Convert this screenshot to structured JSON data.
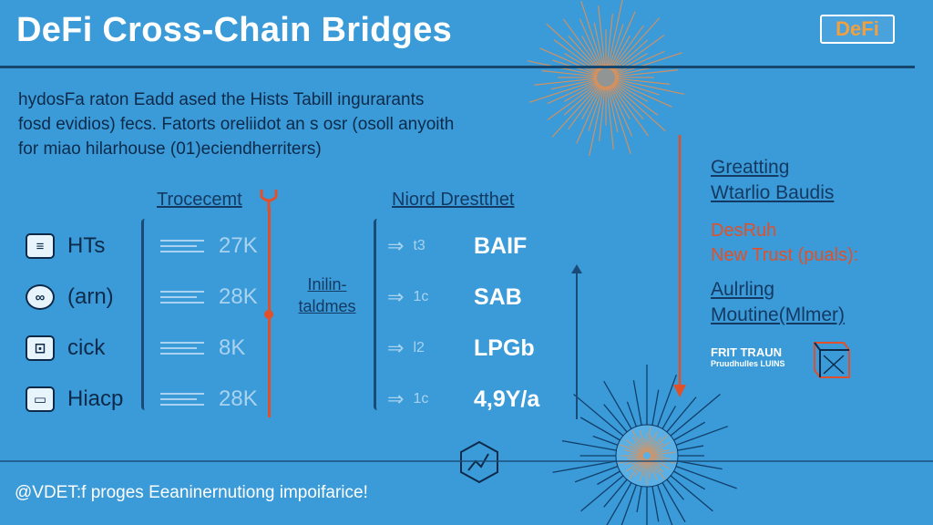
{
  "title": "DeFi Cross-Chain Bridges",
  "logo": "DeFi",
  "intro": [
    "hydosFa raton Eadd ased the Hists Tabill ingurarants",
    "fosd evidios) fecs. Fatorts oreliidot an s osr (osoll anyoith",
    "for miao hilarhouse (01)eciendherriters)"
  ],
  "columns": {
    "volume_header": "Trocecemt",
    "fee_header": "Niord Drestthet"
  },
  "rows": [
    {
      "label": "HTs",
      "icon": "document-icon",
      "volume": "27K",
      "fee_code": "t3",
      "fee_value": "BAIF"
    },
    {
      "label": "(arn)",
      "icon": "chain-link-icon",
      "volume": "28K",
      "fee_code": "1c",
      "fee_value": "SAB"
    },
    {
      "label": "cick",
      "icon": "lock-icon",
      "volume": "8K",
      "fee_code": "l2",
      "fee_value": "LPGb"
    },
    {
      "label": "Hiacp",
      "icon": "card-icon",
      "volume": "28K",
      "fee_code": "1c",
      "fee_value": "4,9Y/a"
    }
  ],
  "middle_label": [
    "Inilin-",
    "taldmes"
  ],
  "right_panel": {
    "line1": "Greatting",
    "line2": "Wtarlio Baudis",
    "orange1": "DesRuh",
    "orange2": "New Trust (puals):",
    "line3": "Aulrling",
    "line4": "Moutine(Mlmer)",
    "small_line1": "FRIT TRAUN",
    "small_line2": "Pruudhulles LUINS"
  },
  "footer": "@VDET:f proges Eeaninernutiong impoifarice!",
  "colors": {
    "background": "#3a9bd8",
    "accent_orange": "#e0502a",
    "dark_text": "#0d2a4a"
  }
}
